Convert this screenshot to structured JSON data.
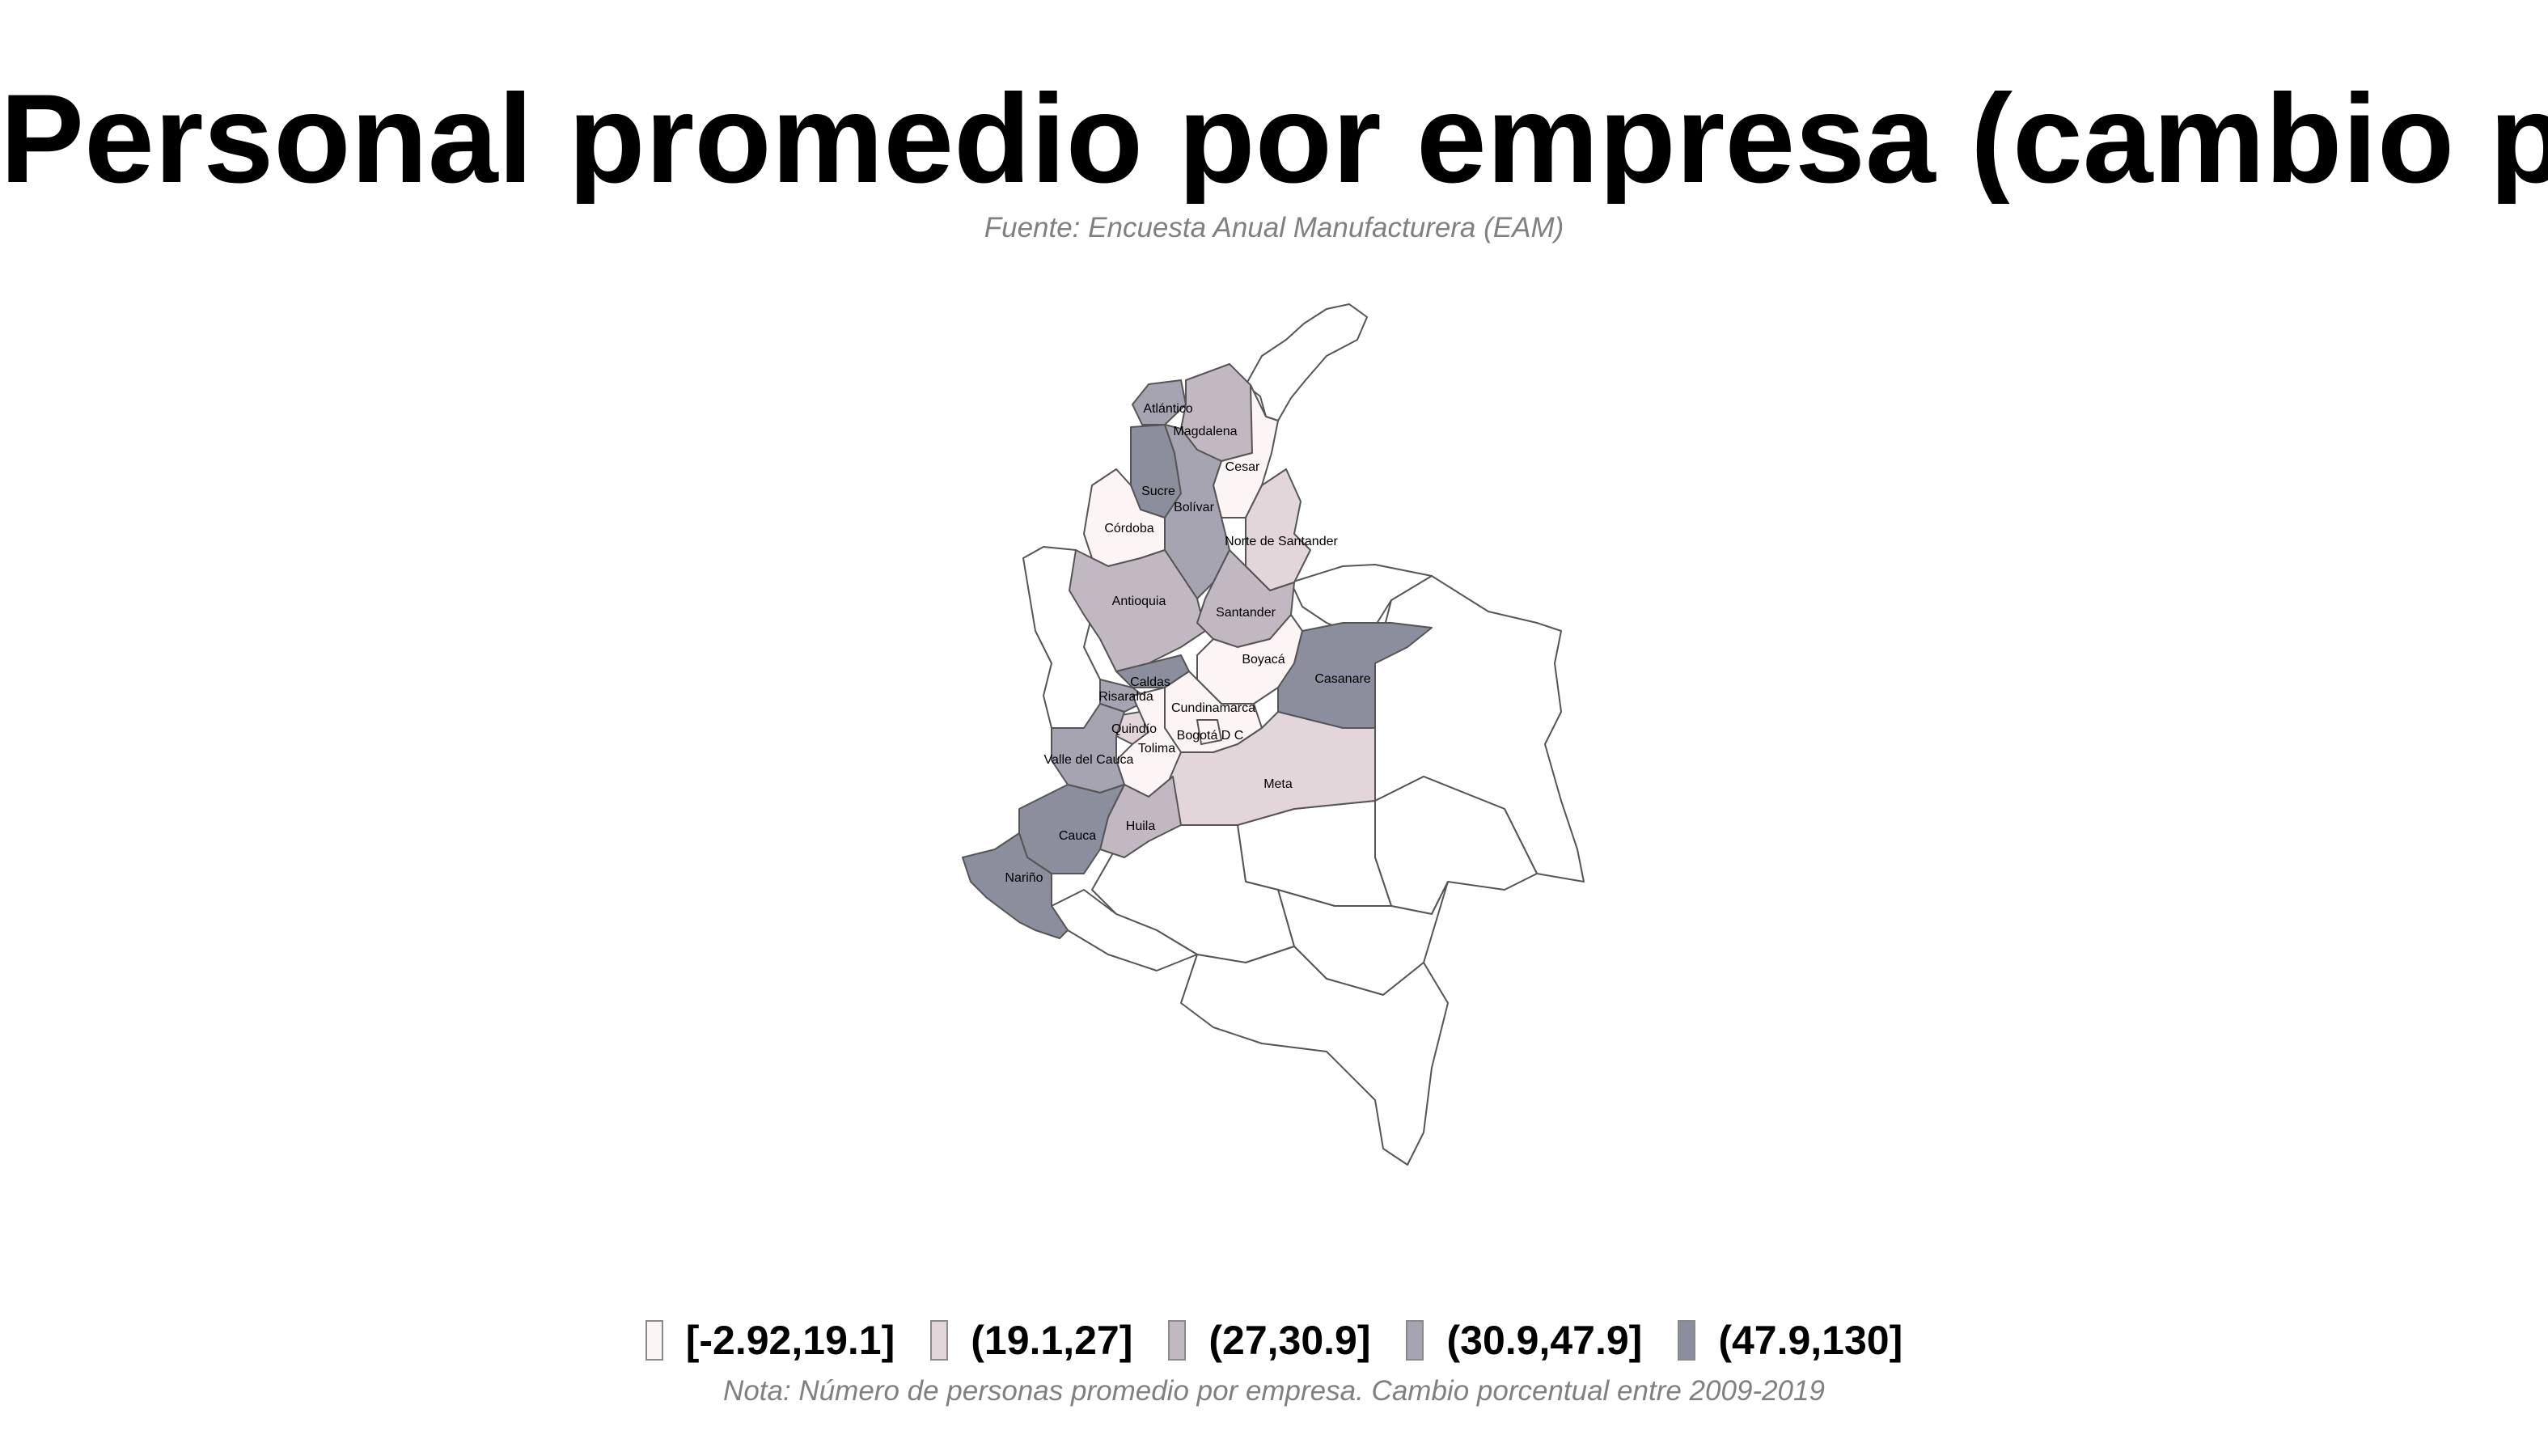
{
  "title": "Personal promedio por empresa (cambio porcentual)",
  "subtitle": "Fuente: Encuesta Anual Manufacturera (EAM)",
  "note": "Nota: Número de personas promedio por empresa. Cambio porcentual entre 2009-2019",
  "legend": [
    {
      "label": "[-2.92,19.1]",
      "color": "#fdf5f5"
    },
    {
      "label": "(19.1,27]",
      "color": "#e3d6da"
    },
    {
      "label": "(27,30.9]",
      "color": "#c2b8c2"
    },
    {
      "label": "(30.9,47.9]",
      "color": "#a7a4b2"
    },
    {
      "label": "(47.9,130]",
      "color": "#8b8e9c"
    }
  ],
  "colors": {
    "border": "#555555",
    "no_data": "#ffffff"
  },
  "departments": [
    {
      "name": "Atlántico",
      "label": "Atlántico",
      "class": 3
    },
    {
      "name": "Magdalena",
      "label": "Magdalena",
      "class": 2
    },
    {
      "name": "Cesar",
      "label": "Cesar",
      "class": 0
    },
    {
      "name": "Sucre",
      "label": "Sucre",
      "class": 4
    },
    {
      "name": "Bolívar",
      "label": "Bolívar",
      "class": 3
    },
    {
      "name": "Córdoba",
      "label": "Córdoba",
      "class": 0
    },
    {
      "name": "Norte de Santander",
      "label": "Norte de Santander",
      "class": 1
    },
    {
      "name": "Antioquia",
      "label": "Antioquia",
      "class": 2
    },
    {
      "name": "Santander",
      "label": "Santander",
      "class": 2
    },
    {
      "name": "Boyacá",
      "label": "Boyacá",
      "class": 0
    },
    {
      "name": "Casanare",
      "label": "Casanare",
      "class": 4
    },
    {
      "name": "Caldas",
      "label": "Caldas",
      "class": 4
    },
    {
      "name": "Risaralda",
      "label": "Risaralda",
      "class": 3
    },
    {
      "name": "Cundinamarca",
      "label": "Cundinamarca",
      "class": 0
    },
    {
      "name": "Quindío",
      "label": "Quindío",
      "class": 1
    },
    {
      "name": "Bogotá D.C",
      "label": "Bogotá D C",
      "class": 0
    },
    {
      "name": "Tolima",
      "label": "Tolima",
      "class": 0
    },
    {
      "name": "Valle del Cauca",
      "label": "Valle del Cauca",
      "class": 3
    },
    {
      "name": "Meta",
      "label": "Meta",
      "class": 1
    },
    {
      "name": "Huila",
      "label": "Huila",
      "class": 2
    },
    {
      "name": "Cauca",
      "label": "Cauca",
      "class": 4
    },
    {
      "name": "Nariño",
      "label": "Nariño",
      "class": 4
    }
  ]
}
